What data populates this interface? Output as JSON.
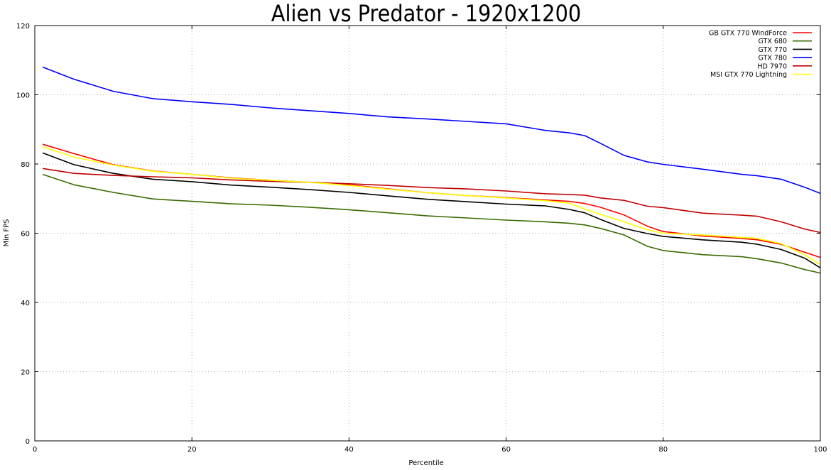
{
  "chart_data": {
    "type": "line",
    "title": "Alien vs Predator - 1920x1200",
    "xlabel": "Percentile",
    "ylabel": "Min FPS",
    "xlim": [
      0,
      100
    ],
    "ylim": [
      0,
      120
    ],
    "xticks": [
      0,
      20,
      40,
      60,
      80,
      100
    ],
    "yticks": [
      0,
      20,
      40,
      60,
      80,
      100,
      120
    ],
    "grid": true,
    "grid_style": "dotted",
    "legend_position": "top-right",
    "x": [
      1,
      5,
      10,
      15,
      20,
      25,
      30,
      35,
      40,
      45,
      50,
      55,
      60,
      65,
      68,
      70,
      72,
      75,
      78,
      80,
      85,
      90,
      92,
      95,
      98,
      100
    ],
    "series": [
      {
        "name": "GB GTX 770 WindForce",
        "color": "#ff0000",
        "values": [
          85.7,
          83.0,
          79.8,
          78.0,
          77.0,
          76.0,
          75.3,
          74.7,
          74.0,
          72.8,
          71.7,
          70.9,
          70.3,
          69.6,
          69.2,
          68.6,
          67.5,
          65.3,
          62.0,
          60.5,
          59.2,
          58.5,
          58.1,
          56.8,
          54.5,
          53.0
        ]
      },
      {
        "name": "GTX 680",
        "color": "#3a6b00",
        "values": [
          77.0,
          74.0,
          71.8,
          69.9,
          69.2,
          68.5,
          68.1,
          67.5,
          66.8,
          65.9,
          65.0,
          64.4,
          63.8,
          63.3,
          62.9,
          62.4,
          61.4,
          59.5,
          56.2,
          55.0,
          53.8,
          53.2,
          52.6,
          51.4,
          49.5,
          48.5
        ]
      },
      {
        "name": "GTX 770",
        "color": "#000000",
        "values": [
          83.2,
          79.8,
          77.3,
          75.6,
          74.9,
          73.9,
          73.3,
          72.6,
          71.8,
          70.8,
          69.8,
          69.1,
          68.4,
          67.9,
          66.9,
          65.9,
          64.0,
          61.4,
          59.9,
          59.1,
          58.1,
          57.4,
          56.8,
          55.3,
          52.8,
          50.0
        ]
      },
      {
        "name": "GTX 780",
        "color": "#0000ff",
        "values": [
          108.0,
          104.5,
          101.0,
          98.9,
          98.0,
          97.2,
          96.2,
          95.4,
          94.6,
          93.6,
          93.0,
          92.3,
          91.6,
          89.7,
          89.0,
          88.2,
          86.0,
          82.5,
          80.6,
          79.9,
          78.5,
          77.0,
          76.6,
          75.6,
          73.3,
          71.5
        ]
      },
      {
        "name": "HD 7970",
        "color": "#c00000",
        "values": [
          78.7,
          77.3,
          76.7,
          76.3,
          76.0,
          75.4,
          75.0,
          74.7,
          74.3,
          73.8,
          73.2,
          72.8,
          72.2,
          71.4,
          71.2,
          71.0,
          70.2,
          69.5,
          67.8,
          67.4,
          65.8,
          65.2,
          64.9,
          63.3,
          61.2,
          60.2
        ]
      },
      {
        "name": "MSI GTX 770 Lightning",
        "color": "#ffff00",
        "values": [
          85.0,
          82.0,
          79.7,
          77.9,
          77.0,
          75.9,
          75.3,
          74.7,
          73.8,
          72.7,
          71.7,
          70.9,
          70.2,
          69.4,
          68.7,
          67.0,
          65.5,
          63.3,
          61.0,
          60.0,
          59.5,
          58.8,
          58.5,
          57.0,
          53.8,
          51.0
        ]
      }
    ]
  }
}
